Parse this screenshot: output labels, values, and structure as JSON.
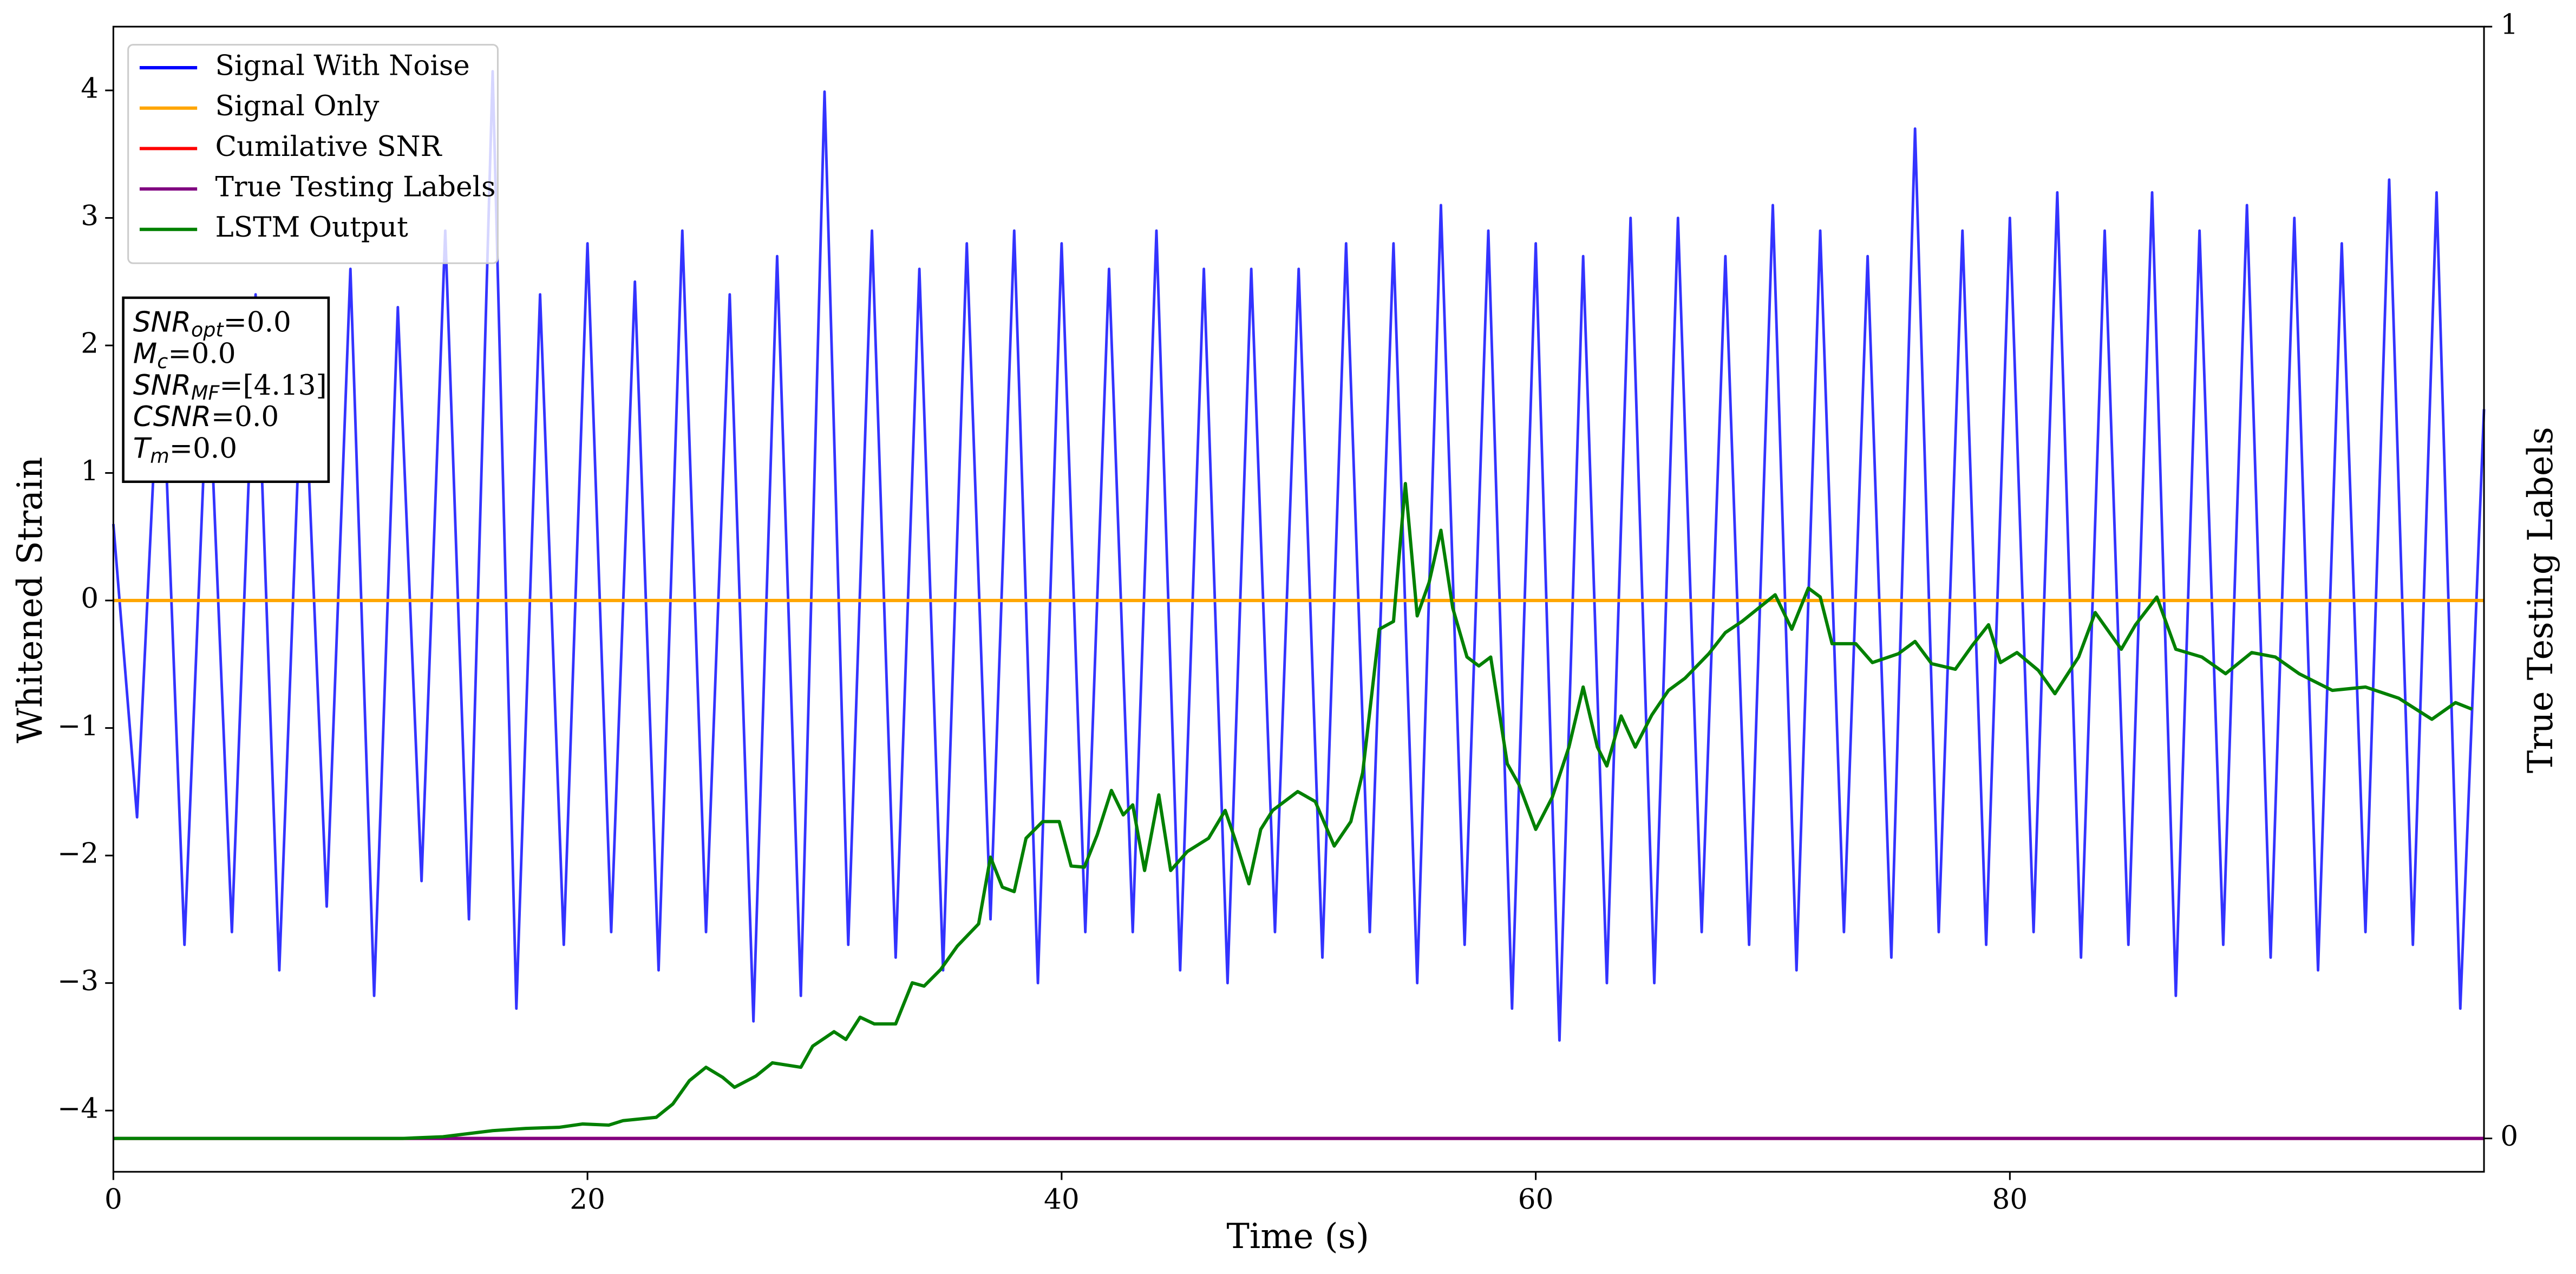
{
  "chart_data": {
    "type": "line",
    "xlabel": "Time (s)",
    "ylabel": "Whitened Strain",
    "y2label": "True Testing Labels",
    "xlim": [
      0,
      100
    ],
    "xticks": [
      0,
      20,
      40,
      60,
      80
    ],
    "ylim": [
      -4.48,
      4.5
    ],
    "yticks": [
      {
        "value": -4,
        "label": "−4"
      },
      {
        "value": -3,
        "label": "−3"
      },
      {
        "value": -2,
        "label": "−2"
      },
      {
        "value": -1,
        "label": "−1"
      },
      0,
      1,
      2,
      3,
      4
    ],
    "y2lim": [
      -0.03,
      1
    ],
    "y2ticks": [
      0,
      1
    ],
    "legend": "upper left",
    "series": [
      {
        "name": "Signal With Noise",
        "color": "#0000ff",
        "x": [
          0,
          1,
          2,
          3,
          4,
          5,
          6,
          7,
          8,
          9,
          10,
          11,
          12,
          13,
          14,
          15,
          16,
          17,
          18,
          19,
          20,
          21,
          22,
          23,
          24,
          25,
          26,
          27,
          28,
          29,
          30,
          31,
          32,
          33,
          34,
          35,
          36,
          37,
          38,
          39,
          40,
          41,
          42,
          43,
          44,
          45,
          46,
          47,
          48,
          49,
          50,
          51,
          52,
          53,
          54,
          55,
          56,
          57,
          58,
          59,
          60,
          61,
          62,
          63,
          64,
          65,
          66,
          67,
          68,
          69,
          70,
          71,
          72,
          73,
          74,
          75,
          76,
          77,
          78,
          79,
          80,
          81,
          82,
          83,
          84,
          85,
          86,
          87,
          88,
          89,
          90,
          91,
          92,
          93,
          94,
          95,
          96,
          97,
          98,
          99,
          100
        ],
        "values": [
          0.6,
          -1.7,
          2.2,
          -2.7,
          1.9,
          -2.6,
          2.4,
          -2.9,
          2.1,
          -2.4,
          2.6,
          -3.1,
          2.3,
          -2.2,
          2.9,
          -2.5,
          4.15,
          -3.2,
          2.4,
          -2.7,
          2.8,
          -2.6,
          2.5,
          -2.9,
          2.9,
          -2.6,
          2.4,
          -3.3,
          2.7,
          -3.1,
          3.99,
          -2.7,
          2.9,
          -2.8,
          2.6,
          -2.9,
          2.8,
          -2.5,
          2.9,
          -3.0,
          2.8,
          -2.6,
          2.6,
          -2.6,
          2.9,
          -2.9,
          2.6,
          -3.0,
          2.6,
          -2.6,
          2.6,
          -2.8,
          2.8,
          -2.6,
          2.8,
          -3.0,
          3.1,
          -2.7,
          2.9,
          -3.2,
          2.8,
          -3.45,
          2.7,
          -3.0,
          3.0,
          -3.0,
          3.0,
          -2.6,
          2.7,
          -2.7,
          3.1,
          -2.9,
          2.9,
          -2.6,
          2.7,
          -2.8,
          3.7,
          -2.6,
          2.9,
          -2.7,
          3.0,
          -2.6,
          3.2,
          -2.8,
          2.9,
          -2.7,
          3.2,
          -3.1,
          2.9,
          -2.7,
          3.1,
          -2.8,
          3.0,
          -2.9,
          2.8,
          -2.6,
          3.3,
          -2.7,
          3.2,
          -3.2,
          1.5
        ]
      },
      {
        "name": "Signal Only",
        "color": "#ffa500",
        "x": [
          0,
          100
        ],
        "values": [
          0,
          0
        ]
      },
      {
        "name": "Cumilative SNR",
        "color": "#ff0000",
        "axis": "y2",
        "x": [
          0,
          100
        ],
        "values": [
          0,
          0
        ]
      },
      {
        "name": "True Testing Labels",
        "color": "#800080",
        "axis": "y2",
        "x": [
          0,
          100
        ],
        "values": [
          0,
          0
        ]
      },
      {
        "name": "LSTM Output",
        "color": "#008000",
        "axis": "y2",
        "x": [
          0,
          12.2,
          13.9,
          16,
          17.4,
          18.8,
          19.8,
          20.9,
          21.5,
          22.9,
          23.6,
          24.3,
          25.0,
          25.7,
          26.2,
          27.1,
          27.8,
          29.0,
          29.5,
          30.4,
          30.9,
          31.5,
          32.1,
          33.0,
          33.7,
          34.2,
          34.9,
          35.6,
          36.5,
          37.0,
          37.5,
          38.0,
          38.5,
          39.2,
          39.9,
          40.4,
          40.96,
          41.5,
          42.1,
          42.6,
          43.0,
          43.5,
          44.1,
          44.6,
          45.3,
          46.2,
          46.9,
          47.3,
          47.9,
          48.4,
          48.9,
          49.96,
          50.7,
          51.5,
          52.2,
          52.7,
          53.4,
          54.0,
          54.5,
          55.0,
          55.5,
          56.0,
          56.5,
          57.1,
          57.6,
          58.1,
          58.8,
          59.3,
          60.0,
          60.7,
          61.4,
          62.0,
          62.6,
          63.0,
          63.6,
          64.2,
          64.9,
          65.6,
          66.3,
          67.3,
          68.0,
          68.7,
          69.4,
          70.1,
          70.8,
          71.5,
          72.0,
          72.5,
          73.5,
          74.2,
          75.3,
          76.0,
          76.7,
          77.7,
          78.4,
          79.1,
          79.6,
          80.3,
          81.2,
          81.9,
          82.9,
          83.6,
          84.7,
          85.3,
          86.2,
          87.0,
          88.1,
          89.1,
          90.2,
          91.2,
          92.2,
          93.6,
          95.0,
          96.4,
          97.8,
          98.8,
          99.5
        ],
        "values": [
          0,
          0,
          0.0015,
          0.007,
          0.009,
          0.01,
          0.013,
          0.012,
          0.016,
          0.019,
          0.031,
          0.052,
          0.064,
          0.055,
          0.046,
          0.056,
          0.068,
          0.064,
          0.083,
          0.096,
          0.089,
          0.109,
          0.103,
          0.103,
          0.14,
          0.137,
          0.152,
          0.173,
          0.193,
          0.253,
          0.226,
          0.222,
          0.27,
          0.285,
          0.285,
          0.245,
          0.244,
          0.273,
          0.313,
          0.291,
          0.3,
          0.241,
          0.309,
          0.241,
          0.258,
          0.27,
          0.295,
          0.27,
          0.229,
          0.278,
          0.295,
          0.312,
          0.303,
          0.263,
          0.285,
          0.329,
          0.458,
          0.465,
          0.589,
          0.47,
          0.5,
          0.547,
          0.477,
          0.433,
          0.425,
          0.433,
          0.337,
          0.318,
          0.278,
          0.307,
          0.352,
          0.406,
          0.352,
          0.335,
          0.38,
          0.352,
          0.381,
          0.403,
          0.414,
          0.436,
          0.455,
          0.465,
          0.477,
          0.489,
          0.458,
          0.495,
          0.487,
          0.445,
          0.445,
          0.428,
          0.436,
          0.447,
          0.427,
          0.422,
          0.443,
          0.462,
          0.428,
          0.437,
          0.421,
          0.4,
          0.433,
          0.473,
          0.44,
          0.462,
          0.487,
          0.44,
          0.433,
          0.418,
          0.437,
          0.433,
          0.418,
          0.403,
          0.406,
          0.396,
          0.377,
          0.392,
          0.386
        ]
      }
    ],
    "annotation": [
      [
        "SNR",
        "opt",
        "=0.0"
      ],
      [
        "M",
        "c",
        "=0.0"
      ],
      [
        "SNR",
        "MF",
        "=[4.13]"
      ],
      [
        "CSNR",
        "",
        "=0.0"
      ],
      [
        "T",
        "m",
        "=0.0"
      ]
    ]
  }
}
